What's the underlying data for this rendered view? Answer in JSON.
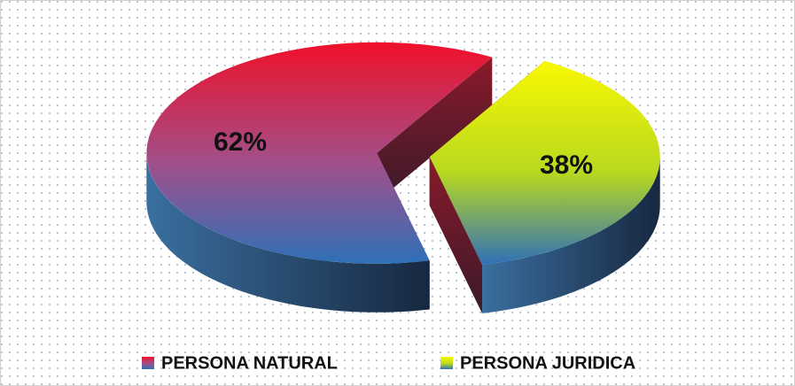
{
  "chart_data": {
    "type": "pie",
    "categories": [
      "PERSONA NATURAL",
      "PERSONA JURIDICA"
    ],
    "values": [
      62,
      38
    ],
    "value_labels": [
      "62%",
      "38%"
    ],
    "colors": [
      "#f0102a",
      "#f8f800"
    ]
  }
}
